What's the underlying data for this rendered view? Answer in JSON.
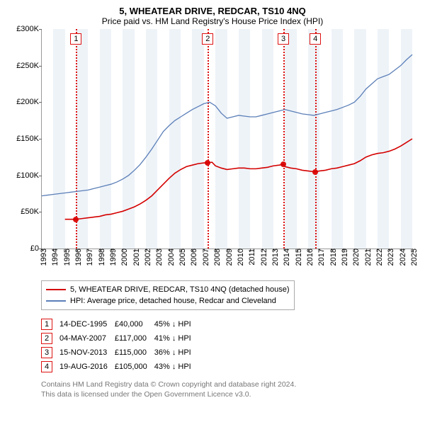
{
  "title": "5, WHEATEAR DRIVE, REDCAR, TS10 4NQ",
  "subtitle": "Price paid vs. HM Land Registry's House Price Index (HPI)",
  "chart": {
    "type": "line",
    "background_color": "#ffffff",
    "band_color": "#eef3f8",
    "axis_color": "#666666",
    "y": {
      "min": 0,
      "max": 300000,
      "step": 50000,
      "labels": [
        "£0",
        "£50K",
        "£100K",
        "£150K",
        "£200K",
        "£250K",
        "£300K"
      ]
    },
    "x": {
      "min": 1993,
      "max": 2025,
      "step": 1,
      "labels": [
        "1993",
        "1994",
        "1995",
        "1996",
        "1997",
        "1998",
        "1999",
        "2000",
        "2001",
        "2002",
        "2003",
        "2004",
        "2005",
        "2006",
        "2007",
        "2008",
        "2009",
        "2010",
        "2011",
        "2012",
        "2013",
        "2014",
        "2015",
        "2016",
        "2017",
        "2018",
        "2019",
        "2020",
        "2021",
        "2022",
        "2023",
        "2024",
        "2025"
      ]
    },
    "series": [
      {
        "name": "property",
        "color": "#d40000",
        "width": 1.6,
        "points": [
          [
            1995,
            40000
          ],
          [
            1995.96,
            40000
          ],
          [
            1996.5,
            41000
          ],
          [
            1997,
            42000
          ],
          [
            1997.5,
            43000
          ],
          [
            1998,
            44000
          ],
          [
            1998.5,
            46000
          ],
          [
            1999,
            47000
          ],
          [
            1999.5,
            49000
          ],
          [
            2000,
            51000
          ],
          [
            2000.5,
            54000
          ],
          [
            2001,
            57000
          ],
          [
            2001.5,
            61000
          ],
          [
            2002,
            66000
          ],
          [
            2002.5,
            72000
          ],
          [
            2003,
            80000
          ],
          [
            2003.5,
            88000
          ],
          [
            2004,
            96000
          ],
          [
            2004.5,
            103000
          ],
          [
            2005,
            108000
          ],
          [
            2005.5,
            112000
          ],
          [
            2006,
            114000
          ],
          [
            2006.5,
            116000
          ],
          [
            2007,
            117000
          ],
          [
            2007.35,
            117000
          ],
          [
            2007.7,
            118000
          ],
          [
            2008,
            113000
          ],
          [
            2008.5,
            110000
          ],
          [
            2009,
            108000
          ],
          [
            2009.5,
            109000
          ],
          [
            2010,
            110000
          ],
          [
            2010.5,
            110000
          ],
          [
            2011,
            109000
          ],
          [
            2011.5,
            109000
          ],
          [
            2012,
            110000
          ],
          [
            2012.5,
            111000
          ],
          [
            2013,
            113000
          ],
          [
            2013.5,
            114000
          ],
          [
            2013.87,
            115000
          ],
          [
            2014,
            112000
          ],
          [
            2014.5,
            110000
          ],
          [
            2015,
            109000
          ],
          [
            2015.5,
            107000
          ],
          [
            2016,
            106000
          ],
          [
            2016.5,
            105000
          ],
          [
            2016.63,
            105000
          ],
          [
            2017,
            106000
          ],
          [
            2017.5,
            107000
          ],
          [
            2018,
            109000
          ],
          [
            2018.5,
            110000
          ],
          [
            2019,
            112000
          ],
          [
            2019.5,
            114000
          ],
          [
            2020,
            116000
          ],
          [
            2020.5,
            120000
          ],
          [
            2021,
            125000
          ],
          [
            2021.5,
            128000
          ],
          [
            2022,
            130000
          ],
          [
            2022.5,
            131000
          ],
          [
            2023,
            133000
          ],
          [
            2023.5,
            136000
          ],
          [
            2024,
            140000
          ],
          [
            2024.5,
            145000
          ],
          [
            2025,
            150000
          ]
        ]
      },
      {
        "name": "hpi",
        "color": "#5b7fb8",
        "width": 1.3,
        "points": [
          [
            1993,
            72000
          ],
          [
            1993.5,
            73000
          ],
          [
            1994,
            74000
          ],
          [
            1994.5,
            75000
          ],
          [
            1995,
            76000
          ],
          [
            1995.5,
            77000
          ],
          [
            1996,
            78000
          ],
          [
            1996.5,
            79000
          ],
          [
            1997,
            80000
          ],
          [
            1997.5,
            82000
          ],
          [
            1998,
            84000
          ],
          [
            1998.5,
            86000
          ],
          [
            1999,
            88000
          ],
          [
            1999.5,
            91000
          ],
          [
            2000,
            95000
          ],
          [
            2000.5,
            100000
          ],
          [
            2001,
            107000
          ],
          [
            2001.5,
            115000
          ],
          [
            2002,
            125000
          ],
          [
            2002.5,
            136000
          ],
          [
            2003,
            148000
          ],
          [
            2003.5,
            160000
          ],
          [
            2004,
            168000
          ],
          [
            2004.5,
            175000
          ],
          [
            2005,
            180000
          ],
          [
            2005.5,
            185000
          ],
          [
            2006,
            190000
          ],
          [
            2006.5,
            194000
          ],
          [
            2007,
            198000
          ],
          [
            2007.5,
            200000
          ],
          [
            2008,
            195000
          ],
          [
            2008.5,
            185000
          ],
          [
            2009,
            178000
          ],
          [
            2009.5,
            180000
          ],
          [
            2010,
            182000
          ],
          [
            2010.5,
            181000
          ],
          [
            2011,
            180000
          ],
          [
            2011.5,
            180000
          ],
          [
            2012,
            182000
          ],
          [
            2012.5,
            184000
          ],
          [
            2013,
            186000
          ],
          [
            2013.5,
            188000
          ],
          [
            2014,
            190000
          ],
          [
            2014.5,
            188000
          ],
          [
            2015,
            186000
          ],
          [
            2015.5,
            184000
          ],
          [
            2016,
            183000
          ],
          [
            2016.5,
            182000
          ],
          [
            2017,
            184000
          ],
          [
            2017.5,
            186000
          ],
          [
            2018,
            188000
          ],
          [
            2018.5,
            190000
          ],
          [
            2019,
            193000
          ],
          [
            2019.5,
            196000
          ],
          [
            2020,
            200000
          ],
          [
            2020.5,
            208000
          ],
          [
            2021,
            218000
          ],
          [
            2021.5,
            225000
          ],
          [
            2022,
            232000
          ],
          [
            2022.5,
            235000
          ],
          [
            2023,
            238000
          ],
          [
            2023.5,
            244000
          ],
          [
            2024,
            250000
          ],
          [
            2024.5,
            258000
          ],
          [
            2025,
            265000
          ]
        ]
      }
    ],
    "markers": [
      {
        "n": "1",
        "x": 1995.96,
        "y": 40000
      },
      {
        "n": "2",
        "x": 2007.34,
        "y": 117000
      },
      {
        "n": "3",
        "x": 2013.87,
        "y": 115000
      },
      {
        "n": "4",
        "x": 2016.63,
        "y": 105000
      }
    ]
  },
  "legend": [
    {
      "color": "#d40000",
      "label": "5, WHEATEAR DRIVE, REDCAR, TS10 4NQ (detached house)"
    },
    {
      "color": "#5b7fb8",
      "label": "HPI: Average price, detached house, Redcar and Cleveland"
    }
  ],
  "sales": [
    {
      "n": "1",
      "date": "14-DEC-1995",
      "price": "£40,000",
      "delta": "45% ↓ HPI"
    },
    {
      "n": "2",
      "date": "04-MAY-2007",
      "price": "£117,000",
      "delta": "41% ↓ HPI"
    },
    {
      "n": "3",
      "date": "15-NOV-2013",
      "price": "£115,000",
      "delta": "36% ↓ HPI"
    },
    {
      "n": "4",
      "date": "19-AUG-2016",
      "price": "£105,000",
      "delta": "43% ↓ HPI"
    }
  ],
  "footer": [
    "Contains HM Land Registry data © Crown copyright and database right 2024.",
    "This data is licensed under the Open Government Licence v3.0."
  ]
}
